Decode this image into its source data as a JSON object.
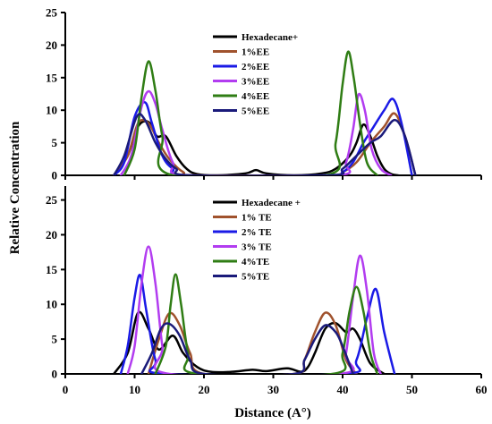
{
  "figure": {
    "ylabel": "Relative Concentration",
    "xlabel": "Distance (A°)"
  },
  "chart_data": [
    {
      "type": "line",
      "xlim": [
        0,
        60
      ],
      "ylim": [
        0,
        25
      ],
      "x_ticks": [
        0,
        10,
        20,
        30,
        40,
        50,
        60
      ],
      "y_ticks": [
        0,
        5,
        10,
        15,
        20,
        25
      ],
      "legend_position": "upper-center",
      "series": [
        {
          "name": "Hexadecane+",
          "color": "#000000",
          "x": [
            7,
            9,
            10.5,
            12,
            13.2,
            14.5,
            16,
            17.5,
            19,
            22,
            26,
            27.5,
            29,
            33,
            37,
            39,
            41,
            42,
            43,
            44,
            45,
            46,
            47,
            48
          ],
          "y": [
            0,
            3,
            7.5,
            8.2,
            6,
            6,
            3,
            1,
            0.2,
            0,
            0.3,
            0.8,
            0.3,
            0,
            0.3,
            1,
            3,
            5,
            7.8,
            6,
            3,
            1,
            0.2,
            0
          ]
        },
        {
          "name": "1%EE",
          "color": "#a0522d",
          "x": [
            7,
            9,
            10.5,
            12,
            13.5,
            15,
            17,
            19,
            38,
            40,
            42,
            44,
            46,
            47.5,
            49,
            50.5
          ],
          "y": [
            0,
            3,
            8,
            8,
            5,
            2.5,
            0.5,
            0,
            0,
            0.5,
            2,
            5,
            7.5,
            9.5,
            6,
            0
          ]
        },
        {
          "name": "2%EE",
          "color": "#1a1ae6",
          "x": [
            7,
            8.5,
            10,
            11.5,
            12.5,
            14,
            15.5,
            17.5,
            38,
            40,
            41.5,
            43,
            44.5,
            46,
            47.3,
            48.5,
            50
          ],
          "y": [
            0,
            2,
            9,
            11.2,
            8,
            3,
            1,
            0,
            0,
            0.5,
            2,
            5,
            7.5,
            10,
            11.7,
            8,
            0
          ]
        },
        {
          "name": "3%EE",
          "color": "#b23cf0",
          "x": [
            8,
            9.5,
            11,
            12,
            13,
            14,
            15.5,
            17.5,
            39,
            40.5,
            41.5,
            42.3,
            43.2,
            44.2,
            45.5,
            47
          ],
          "y": [
            0,
            3,
            10.5,
            12.9,
            11,
            7,
            2,
            0,
            0,
            2,
            7,
            12.4,
            10,
            4,
            1,
            0
          ]
        },
        {
          "name": "4%EE",
          "color": "#2f7d14",
          "x": [
            8.5,
            10,
            11,
            12,
            13,
            14,
            15.5,
            37.5,
            39,
            40,
            40.8,
            41.6,
            42.5,
            43.5,
            45
          ],
          "y": [
            0,
            4,
            12,
            17.5,
            13,
            6,
            0,
            0,
            5,
            14,
            19,
            15,
            8,
            2,
            0
          ]
        },
        {
          "name": "5%EE",
          "color": "#1a1a7a",
          "x": [
            7,
            8.5,
            10.3,
            11.5,
            13,
            14.5,
            16,
            18,
            38,
            40,
            42,
            44,
            45.5,
            47.5,
            49,
            50.5
          ],
          "y": [
            0,
            3,
            9,
            8.5,
            5,
            2.5,
            1,
            0,
            0,
            1,
            3,
            5,
            6,
            8.5,
            6,
            0
          ]
        }
      ]
    },
    {
      "type": "line",
      "xlim": [
        0,
        60
      ],
      "ylim": [
        0,
        27
      ],
      "x_ticks": [
        0,
        10,
        20,
        30,
        40,
        50,
        60
      ],
      "y_ticks": [
        0,
        5,
        10,
        15,
        20,
        25
      ],
      "legend_position": "upper-center",
      "series": [
        {
          "name": "Hexadecane +",
          "color": "#000000",
          "x": [
            7,
            9,
            10.5,
            12,
            13.5,
            15.5,
            17,
            19,
            21,
            24,
            27,
            29,
            32,
            34,
            35,
            36,
            37.5,
            39,
            40.5,
            41.5,
            42.5,
            44,
            46
          ],
          "y": [
            0,
            3,
            8.8,
            6.5,
            3.5,
            5.5,
            3,
            1,
            0.3,
            0.3,
            0.6,
            0.4,
            0.8,
            0.3,
            1,
            3,
            6.5,
            7.3,
            6,
            6.5,
            5,
            1.5,
            0
          ]
        },
        {
          "name": "1% TE",
          "color": "#a0522d",
          "x": [
            12,
            13.5,
            15,
            16.5,
            18,
            20,
            33,
            34.5,
            36,
            37.5,
            39,
            40.5,
            42
          ],
          "y": [
            0,
            5,
            8.7,
            7,
            3,
            0,
            0,
            2,
            6,
            8.8,
            7,
            2,
            0
          ]
        },
        {
          "name": "2% TE",
          "color": "#1a1ae6",
          "x": [
            8,
            9,
            10,
            10.8,
            11.7,
            13,
            14.5,
            40,
            42,
            43.5,
            44.8,
            46,
            47.5
          ],
          "y": [
            0,
            4,
            11,
            14.2,
            9,
            2,
            0,
            0,
            2,
            8,
            12.2,
            6,
            0
          ]
        },
        {
          "name": "3% TE",
          "color": "#b23cf0",
          "x": [
            9,
            10,
            11,
            12,
            13,
            14,
            15,
            39.5,
            40.5,
            41.5,
            42.5,
            43.5,
            44.5,
            45.5
          ],
          "y": [
            0,
            4,
            13,
            18.3,
            13,
            4,
            0,
            0,
            3,
            11,
            17,
            12,
            3,
            0
          ]
        },
        {
          "name": "4%TE",
          "color": "#2f7d14",
          "x": [
            13,
            14.5,
            15.2,
            15.9,
            16.7,
            17.7,
            19,
            38.5,
            40,
            41,
            42,
            43,
            44,
            45
          ],
          "y": [
            0,
            4,
            10,
            14.3,
            10,
            3,
            0,
            0,
            3,
            9,
            12.5,
            9,
            3,
            0
          ]
        },
        {
          "name": "5%TE",
          "color": "#1a1a7a",
          "x": [
            11,
            12.5,
            13.8,
            15,
            16.5,
            18,
            20,
            33,
            34.5,
            36,
            37.5,
            39,
            40,
            41.5
          ],
          "y": [
            0,
            3,
            6.5,
            7.2,
            5.5,
            2,
            0,
            0,
            2,
            5,
            7,
            6,
            4,
            0
          ]
        }
      ]
    }
  ]
}
